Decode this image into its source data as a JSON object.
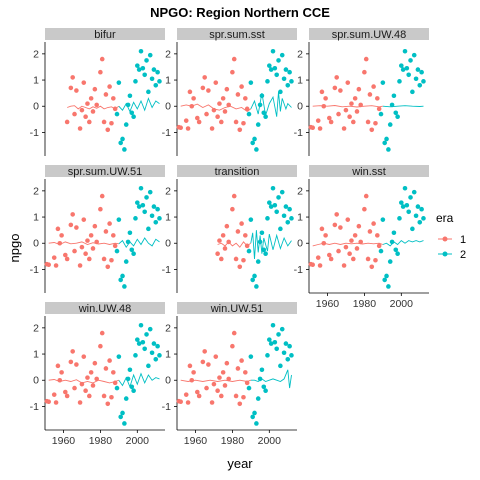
{
  "chart_data": {
    "type": "scatter",
    "title": "NPGO: Region Northern CCE",
    "xlabel": "year",
    "ylabel": "npgo",
    "xlim": [
      1950,
      2015
    ],
    "ylim": [
      -1.9,
      2.3
    ],
    "xticks": [
      1960,
      1980,
      2000
    ],
    "yticks": [
      -1,
      0,
      1,
      2
    ],
    "grid": false,
    "legend": {
      "title": "era",
      "placement": "right",
      "entries": [
        {
          "label": "1",
          "color": "#F8766D"
        },
        {
          "label": "2",
          "color": "#00BFC4"
        }
      ]
    },
    "facets": [
      "bifur",
      "spr.sum.sst",
      "spr.sum.UW.48",
      "spr.sum.UW.51",
      "transition",
      "win.sst",
      "win.UW.48",
      "win.UW.51"
    ],
    "points_era1": [
      [
        1951,
        -0.8
      ],
      [
        1952,
        -0.82
      ],
      [
        1955,
        -0.55
      ],
      [
        1956,
        -0.85
      ],
      [
        1957,
        0.55
      ],
      [
        1958,
        0.0
      ],
      [
        1959,
        0.3
      ],
      [
        1961,
        -0.45
      ],
      [
        1962,
        -0.6
      ],
      [
        1964,
        0.7
      ],
      [
        1965,
        1.1
      ],
      [
        1966,
        -0.3
      ],
      [
        1967,
        0.6
      ],
      [
        1969,
        -0.85
      ],
      [
        1970,
        -0.15
      ],
      [
        1971,
        0.9
      ],
      [
        1972,
        -0.4
      ],
      [
        1973,
        0.1
      ],
      [
        1974,
        -0.6
      ],
      [
        1975,
        0.3
      ],
      [
        1976,
        -0.2
      ],
      [
        1977,
        0.65
      ],
      [
        1978,
        0.05
      ],
      [
        1980,
        1.3
      ],
      [
        1981,
        1.8
      ],
      [
        1982,
        -0.6
      ],
      [
        1983,
        0.45
      ],
      [
        1984,
        -0.9
      ],
      [
        1985,
        0.75
      ],
      [
        1986,
        -0.65
      ],
      [
        1987,
        0.3
      ],
      [
        1988,
        -0.1
      ]
    ],
    "points_era2": [
      [
        1989,
        -0.3
      ],
      [
        1990,
        0.9
      ],
      [
        1991,
        -1.4
      ],
      [
        1992,
        -1.25
      ],
      [
        1993,
        -1.65
      ],
      [
        1994,
        -0.7
      ],
      [
        1995,
        0.05
      ],
      [
        1996,
        0.4
      ],
      [
        1997,
        -0.25
      ],
      [
        1998,
        -0.4
      ],
      [
        1999,
        0.95
      ],
      [
        2000,
        1.55
      ],
      [
        2001,
        1.4
      ],
      [
        2002,
        2.1
      ],
      [
        2003,
        1.45
      ],
      [
        2004,
        1.2
      ],
      [
        2005,
        1.75
      ],
      [
        2006,
        0.55
      ],
      [
        2007,
        1.95
      ],
      [
        2008,
        1.05
      ],
      [
        2009,
        1.4
      ],
      [
        2010,
        0.8
      ],
      [
        2011,
        1.3
      ],
      [
        2012,
        0.95
      ]
    ],
    "fit_lines": {
      "bifur": {
        "era1": [
          [
            1962,
            -0.05
          ],
          [
            1964,
            0.0
          ],
          [
            1966,
            0.02
          ],
          [
            1968,
            -0.1
          ],
          [
            1970,
            0.0
          ],
          [
            1972,
            -0.05
          ],
          [
            1974,
            -0.1
          ],
          [
            1976,
            -0.02
          ],
          [
            1978,
            -0.08
          ],
          [
            1980,
            0.0
          ],
          [
            1982,
            -0.1
          ],
          [
            1984,
            -0.05
          ],
          [
            1986,
            -0.02
          ],
          [
            1988,
            -0.1
          ],
          [
            1990,
            0.0
          ]
        ],
        "era2": [
          [
            1990,
            0.0
          ],
          [
            1992,
            -0.15
          ],
          [
            1994,
            0.1
          ],
          [
            1996,
            -0.2
          ],
          [
            1998,
            0.15
          ],
          [
            2000,
            -0.1
          ],
          [
            2002,
            0.2
          ],
          [
            2004,
            -0.15
          ],
          [
            2006,
            0.3
          ],
          [
            2008,
            -0.05
          ],
          [
            2010,
            0.2
          ],
          [
            2012,
            0.1
          ]
        ]
      },
      "spr.sum.sst": {
        "era1": [
          [
            1952,
            0.0
          ],
          [
            1955,
            0.05
          ],
          [
            1958,
            0.0
          ],
          [
            1961,
            0.08
          ],
          [
            1964,
            -0.05
          ],
          [
            1967,
            0.05
          ],
          [
            1970,
            -0.1
          ],
          [
            1973,
            -0.15
          ],
          [
            1976,
            -0.05
          ],
          [
            1979,
            0.0
          ],
          [
            1982,
            -0.1
          ],
          [
            1985,
            -0.05
          ],
          [
            1988,
            -0.2
          ],
          [
            1990,
            -0.1
          ]
        ],
        "era2": [
          [
            1990,
            -0.1
          ],
          [
            1992,
            0.2
          ],
          [
            1994,
            -0.3
          ],
          [
            1996,
            0.5
          ],
          [
            1998,
            -0.35
          ],
          [
            2000,
            0.1
          ],
          [
            2002,
            0.35
          ],
          [
            2004,
            -0.4
          ],
          [
            2005,
            0.55
          ],
          [
            2006,
            -0.2
          ],
          [
            2007,
            0.3
          ],
          [
            2009,
            -0.1
          ],
          [
            2010,
            0.1
          ],
          [
            2012,
            -0.05
          ]
        ]
      },
      "spr.sum.UW.48": {
        "era1": [
          [
            1952,
            0.0
          ],
          [
            1956,
            0.02
          ],
          [
            1960,
            0.0
          ],
          [
            1964,
            0.03
          ],
          [
            1968,
            -0.02
          ],
          [
            1972,
            0.0
          ],
          [
            1976,
            -0.03
          ],
          [
            1980,
            0.0
          ],
          [
            1984,
            0.02
          ],
          [
            1988,
            -0.02
          ],
          [
            1990,
            0.0
          ]
        ],
        "era2": [
          [
            1990,
            0.0
          ],
          [
            1994,
            -0.02
          ],
          [
            1998,
            0.0
          ],
          [
            2002,
            0.02
          ],
          [
            2006,
            0.0
          ],
          [
            2010,
            -0.01
          ],
          [
            2012,
            0.0
          ]
        ]
      },
      "spr.sum.UW.51": {
        "era1": [
          [
            1952,
            0.0
          ],
          [
            1955,
            0.03
          ],
          [
            1958,
            -0.05
          ],
          [
            1961,
            0.05
          ],
          [
            1964,
            -0.02
          ],
          [
            1967,
            0.0
          ],
          [
            1970,
            0.05
          ],
          [
            1973,
            -0.05
          ],
          [
            1976,
            0.02
          ],
          [
            1979,
            -0.03
          ],
          [
            1982,
            0.0
          ],
          [
            1985,
            -0.05
          ],
          [
            1988,
            0.0
          ],
          [
            1990,
            -0.02
          ]
        ],
        "era2": [
          [
            1990,
            -0.02
          ],
          [
            1992,
            0.1
          ],
          [
            1994,
            -0.15
          ],
          [
            1996,
            0.05
          ],
          [
            1998,
            -0.1
          ],
          [
            2000,
            0.15
          ],
          [
            2002,
            -0.05
          ],
          [
            2004,
            0.2
          ],
          [
            2006,
            0.0
          ],
          [
            2008,
            -0.1
          ],
          [
            2010,
            0.15
          ],
          [
            2012,
            0.05
          ]
        ]
      },
      "transition": {
        "era1": [
          [
            1972,
            -0.05
          ],
          [
            1974,
            0.0
          ],
          [
            1976,
            -0.1
          ],
          [
            1978,
            0.05
          ],
          [
            1980,
            -0.1
          ],
          [
            1982,
            0.0
          ],
          [
            1984,
            -0.15
          ],
          [
            1986,
            0.05
          ],
          [
            1988,
            -0.1
          ],
          [
            1990,
            0.0
          ]
        ],
        "era2": [
          [
            1990,
            0.0
          ],
          [
            1991,
            0.4
          ],
          [
            1992,
            -0.6
          ],
          [
            1993,
            0.5
          ],
          [
            1994,
            -0.35
          ],
          [
            1995,
            0.3
          ],
          [
            1996,
            -0.4
          ],
          [
            1997,
            0.2
          ],
          [
            1999,
            -0.3
          ],
          [
            2000,
            0.35
          ],
          [
            2002,
            -0.25
          ],
          [
            2004,
            0.3
          ],
          [
            2006,
            -0.2
          ],
          [
            2008,
            0.2
          ],
          [
            2010,
            -0.1
          ],
          [
            2012,
            0.1
          ]
        ]
      },
      "win.sst": {
        "era1": [
          [
            1952,
            -0.1
          ],
          [
            1955,
            -0.05
          ],
          [
            1958,
            0.0
          ],
          [
            1961,
            -0.05
          ],
          [
            1964,
            0.0
          ],
          [
            1967,
            -0.05
          ],
          [
            1970,
            0.0
          ],
          [
            1973,
            -0.02
          ],
          [
            1976,
            0.0
          ],
          [
            1979,
            -0.03
          ],
          [
            1982,
            0.0
          ],
          [
            1985,
            -0.02
          ],
          [
            1988,
            0.0
          ],
          [
            1990,
            -0.05
          ]
        ],
        "era2": [
          [
            1990,
            -0.05
          ],
          [
            1992,
            0.0
          ],
          [
            1994,
            -0.1
          ],
          [
            1996,
            0.05
          ],
          [
            1998,
            -0.05
          ],
          [
            2000,
            0.1
          ],
          [
            2002,
            0.0
          ],
          [
            2004,
            0.1
          ],
          [
            2006,
            0.05
          ],
          [
            2008,
            0.1
          ],
          [
            2010,
            0.05
          ],
          [
            2012,
            0.1
          ]
        ]
      },
      "win.UW.48": {
        "era1": [
          [
            1952,
            0.0
          ],
          [
            1955,
            0.03
          ],
          [
            1958,
            -0.05
          ],
          [
            1961,
            0.0
          ],
          [
            1964,
            -0.05
          ],
          [
            1967,
            0.02
          ],
          [
            1970,
            -0.1
          ],
          [
            1973,
            -0.05
          ],
          [
            1976,
            -0.1
          ],
          [
            1979,
            0.0
          ],
          [
            1982,
            -0.05
          ],
          [
            1985,
            -0.1
          ],
          [
            1988,
            -0.05
          ],
          [
            1990,
            0.0
          ]
        ],
        "era2": [
          [
            1990,
            0.0
          ],
          [
            1992,
            -0.2
          ],
          [
            1994,
            0.1
          ],
          [
            1996,
            -0.25
          ],
          [
            1998,
            0.2
          ],
          [
            2000,
            -0.15
          ],
          [
            2002,
            0.25
          ],
          [
            2004,
            -0.1
          ],
          [
            2006,
            0.2
          ],
          [
            2008,
            0.0
          ],
          [
            2010,
            0.1
          ],
          [
            2012,
            0.05
          ]
        ]
      },
      "win.UW.51": {
        "era1": [
          [
            1952,
            0.0
          ],
          [
            1956,
            -0.05
          ],
          [
            1960,
            0.0
          ],
          [
            1964,
            -0.05
          ],
          [
            1968,
            0.0
          ],
          [
            1972,
            -0.05
          ],
          [
            1976,
            0.0
          ],
          [
            1980,
            -0.05
          ],
          [
            1984,
            0.0
          ],
          [
            1988,
            -0.05
          ],
          [
            1990,
            0.0
          ]
        ],
        "era2": [
          [
            1990,
            0.0
          ],
          [
            1992,
            0.0
          ],
          [
            1994,
            -0.05
          ],
          [
            1996,
            0.05
          ],
          [
            1998,
            -0.05
          ],
          [
            2000,
            0.0
          ],
          [
            2002,
            0.05
          ],
          [
            2004,
            0.0
          ],
          [
            2006,
            -0.05
          ],
          [
            2008,
            0.05
          ],
          [
            2010,
            0.4
          ],
          [
            2011,
            -0.3
          ],
          [
            2012,
            0.2
          ]
        ]
      }
    },
    "facet_xranges": {
      "bifur": [
        1962,
        2012
      ],
      "transition": [
        1972,
        2012
      ]
    }
  }
}
